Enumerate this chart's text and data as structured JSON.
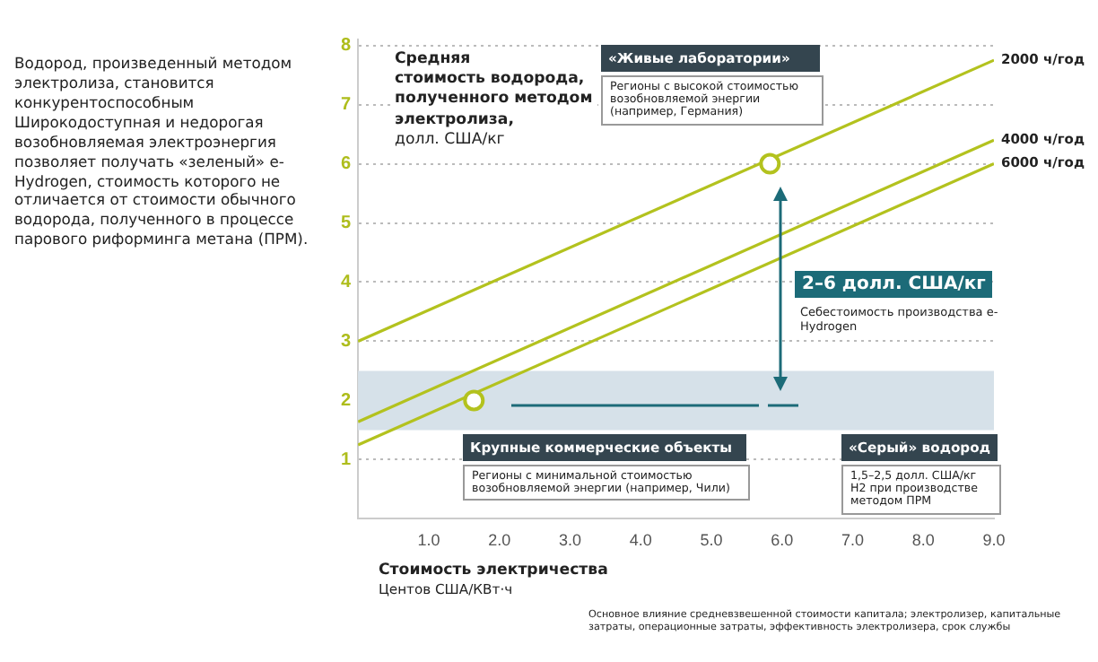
{
  "chart_data": {
    "type": "line",
    "ylabel": "Средняя\nстоимость водорода,\nполученного методом\nэлектролиза,\nдолл. США/кг",
    "xlabel": "Стоимость электричества\nЦентов США/КВт·ч",
    "x": [
      0,
      9
    ],
    "series": [
      {
        "name": "2000 ч/год",
        "color": "#b3c21e",
        "values": [
          3,
          7.75
        ]
      },
      {
        "name": "4000 ч/год",
        "color": "#b3c21e",
        "values": [
          1.64,
          6.4
        ]
      },
      {
        "name": "6000 ч/год",
        "color": "#b3c21e",
        "values": [
          1.25,
          6.0
        ]
      },
      {
        "type": "scatter",
        "color": "#b3c21e",
        "x": [
          5.83,
          1.64
        ],
        "values": [
          6,
          2
        ],
        "marker": "circle"
      }
    ],
    "xlim": [
      0,
      9
    ],
    "ylim": [
      0,
      8.1
    ],
    "xticks": [
      {
        "value": 1,
        "label": "1.0"
      },
      {
        "value": 2,
        "label": "2.0"
      },
      {
        "value": 3,
        "label": "3.0"
      },
      {
        "value": 4,
        "label": "4.0"
      },
      {
        "value": 5,
        "label": "5.0"
      },
      {
        "value": 6,
        "label": "6.0"
      },
      {
        "value": 7,
        "label": "7.0"
      },
      {
        "value": 8,
        "label": "8.0"
      },
      {
        "value": 9,
        "label": "9.0"
      }
    ],
    "yticks": [
      1,
      2,
      3,
      4,
      5,
      6,
      7,
      8
    ],
    "grid": "y",
    "legend": false,
    "marker": "none",
    "line_style": "solid",
    "bands": [
      {
        "axis": "y",
        "from": 1.5,
        "to": 2.5,
        "color": "#d6e1e9"
      }
    ],
    "annotations": [
      "Водород, произведенный методом электролиза, становится конкурентоспособным Широкодоступная и недорогая возобновляемая электроэнергия позволяет получать «зеленый» e-Hydrogen, стоимость которого не отличается от стоимости обычного водорода, полученного в процессе парового риформинга метана (ПРМ).",
      "«Живые лаборатории»",
      "Регионы с высокой стоимостью возобновляемой энергии (например, Германия)",
      "2–6 долл. США/кг",
      "Себестоимость производства e-Hydrogen",
      "Крупные коммерческие объекты",
      "Регионы с минимальной стоимостью возобновляемой энергии (например, Чили)",
      "«Серый» водород",
      "1,5–2,5 долл. США/кг H2 при производстве методом ПРМ",
      "Основное влияние средневзвешенной стоимости капитала; электролизер, капитальные затраты, операционные затраты, эффективность электролизера, срок службы"
    ]
  }
}
